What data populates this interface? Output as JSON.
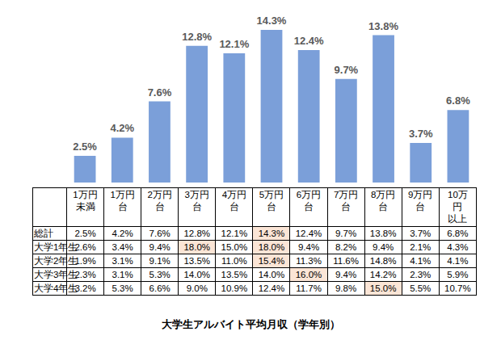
{
  "chart_data": {
    "type": "bar",
    "title": "大学生アルバイト平均月収（学年別）",
    "categories": [
      "1万円未満",
      "1万円台",
      "2万円台",
      "3万円台",
      "4万円台",
      "5万円台",
      "6万円台",
      "7万円台",
      "8万円台",
      "9万円台",
      "10万円以上"
    ],
    "values": [
      2.5,
      4.2,
      7.6,
      12.8,
      12.1,
      14.3,
      12.4,
      9.7,
      13.8,
      3.7,
      6.8
    ],
    "value_labels": [
      "2.5%",
      "4.2%",
      "7.6%",
      "12.8%",
      "12.1%",
      "14.3%",
      "12.4%",
      "9.7%",
      "13.8%",
      "3.7%",
      "6.8%"
    ],
    "color": "#7b9fd9",
    "data_labels": true,
    "tick_labels": false,
    "grid": false
  },
  "table": {
    "header": [
      [
        "1万円",
        "未満"
      ],
      [
        "1万円",
        "台"
      ],
      [
        "2万円",
        "台"
      ],
      [
        "3万円",
        "台"
      ],
      [
        "4万円",
        "台"
      ],
      [
        "5万円",
        "台"
      ],
      [
        "6万円",
        "台"
      ],
      [
        "7万円",
        "台"
      ],
      [
        "8万円",
        "台"
      ],
      [
        "9万円",
        "台"
      ],
      [
        "10万",
        "円",
        "以上"
      ]
    ],
    "rows": [
      [
        "総計",
        "2.5%",
        "4.2%",
        "7.6%",
        "12.8%",
        "12.1%",
        "14.3%",
        "12.4%",
        "9.7%",
        "13.8%",
        "3.7%",
        "6.8%"
      ],
      [
        "大学1年生",
        "2.6%",
        "3.4%",
        "9.4%",
        "18.0%",
        "15.0%",
        "18.0%",
        "9.4%",
        "8.2%",
        "9.4%",
        "2.1%",
        "4.3%"
      ],
      [
        "大学2年生",
        "1.9%",
        "3.1%",
        "9.1%",
        "13.5%",
        "11.0%",
        "15.4%",
        "11.3%",
        "11.6%",
        "14.8%",
        "4.1%",
        "4.1%"
      ],
      [
        "大学3年生",
        "2.3%",
        "3.1%",
        "5.3%",
        "14.0%",
        "13.5%",
        "14.0%",
        "16.0%",
        "9.4%",
        "14.2%",
        "2.3%",
        "5.9%"
      ],
      [
        "大学4年生",
        "3.2%",
        "5.3%",
        "6.6%",
        "9.0%",
        "10.9%",
        "12.4%",
        "11.7%",
        "9.8%",
        "15.0%",
        "5.5%",
        "10.7%"
      ]
    ]
  }
}
